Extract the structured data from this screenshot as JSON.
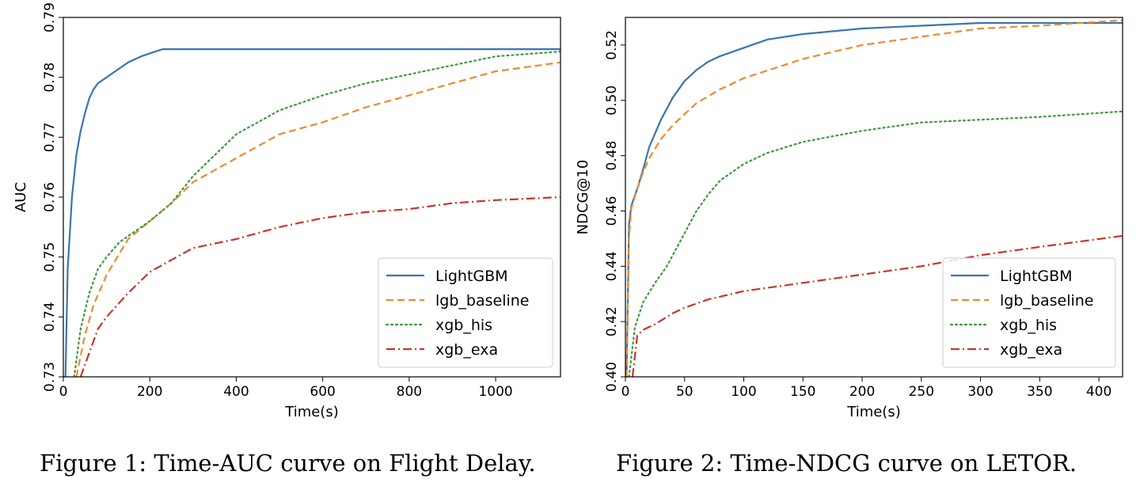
{
  "colors": {
    "LightGBM": "#3a75b0",
    "lgb_baseline": "#f08a2e",
    "xgb_his": "#3e9a3e",
    "xgb_exa": "#c8342f"
  },
  "captions": [
    "Figure 1: Time-AUC curve on Flight Delay.",
    "Figure 2: Time-NDCG curve on LETOR."
  ],
  "chart_data": [
    {
      "type": "line",
      "title": "",
      "xlabel": "Time(s)",
      "ylabel": "AUC",
      "xlim": [
        0,
        1150
      ],
      "ylim": [
        0.73,
        0.79
      ],
      "xticks": [
        0,
        200,
        400,
        600,
        800,
        1000
      ],
      "yticks": [
        0.73,
        0.74,
        0.75,
        0.76,
        0.77,
        0.78,
        0.79
      ],
      "ytick_labels": [
        "0.73",
        "0.74",
        "0.75",
        "0.76",
        "0.77",
        "0.78",
        "0.79"
      ],
      "legend": "lower-right",
      "series": [
        {
          "name": "LightGBM",
          "style": "solid",
          "x": [
            5,
            10,
            20,
            30,
            40,
            50,
            60,
            70,
            80,
            100,
            120,
            150,
            180,
            200,
            230,
            1150
          ],
          "y": [
            0.73,
            0.748,
            0.76,
            0.767,
            0.771,
            0.774,
            0.7765,
            0.778,
            0.779,
            0.78,
            0.781,
            0.7825,
            0.7835,
            0.784,
            0.7847,
            0.7847
          ]
        },
        {
          "name": "lgb_baseline",
          "style": "dashed",
          "x": [
            30,
            50,
            70,
            100,
            150,
            200,
            250,
            300,
            400,
            500,
            600,
            700,
            800,
            900,
            1000,
            1150
          ],
          "y": [
            0.73,
            0.737,
            0.742,
            0.747,
            0.753,
            0.756,
            0.759,
            0.7625,
            0.7665,
            0.7705,
            0.7725,
            0.775,
            0.777,
            0.779,
            0.781,
            0.7825
          ]
        },
        {
          "name": "xgb_his",
          "style": "dotted",
          "x": [
            25,
            40,
            60,
            80,
            100,
            130,
            160,
            200,
            250,
            300,
            400,
            500,
            600,
            700,
            800,
            900,
            1000,
            1150
          ],
          "y": [
            0.73,
            0.738,
            0.744,
            0.748,
            0.75,
            0.7525,
            0.754,
            0.756,
            0.759,
            0.7635,
            0.7705,
            0.7745,
            0.777,
            0.779,
            0.7805,
            0.782,
            0.7835,
            0.7843
          ]
        },
        {
          "name": "xgb_exa",
          "style": "dashdot",
          "x": [
            40,
            60,
            80,
            100,
            150,
            200,
            250,
            300,
            400,
            500,
            600,
            700,
            800,
            900,
            1000,
            1150
          ],
          "y": [
            0.73,
            0.734,
            0.738,
            0.74,
            0.744,
            0.7475,
            0.7495,
            0.7515,
            0.753,
            0.755,
            0.7565,
            0.7575,
            0.758,
            0.759,
            0.7595,
            0.76
          ]
        }
      ]
    },
    {
      "type": "line",
      "title": "",
      "xlabel": "Time(s)",
      "ylabel": "NDCG@10",
      "xlim": [
        0,
        420
      ],
      "ylim": [
        0.4,
        0.53
      ],
      "xticks": [
        0,
        50,
        100,
        150,
        200,
        250,
        300,
        350,
        400
      ],
      "yticks": [
        0.4,
        0.42,
        0.44,
        0.46,
        0.48,
        0.5,
        0.52
      ],
      "ytick_labels": [
        "0.40",
        "0.42",
        "0.44",
        "0.46",
        "0.48",
        "0.50",
        "0.52"
      ],
      "legend": "lower-right",
      "series": [
        {
          "name": "LightGBM",
          "style": "solid",
          "x": [
            1,
            3,
            5,
            10,
            15,
            20,
            30,
            40,
            50,
            60,
            70,
            80,
            100,
            120,
            150,
            200,
            250,
            300,
            420
          ],
          "y": [
            0.4,
            0.455,
            0.462,
            0.468,
            0.475,
            0.483,
            0.493,
            0.501,
            0.507,
            0.511,
            0.514,
            0.516,
            0.519,
            0.522,
            0.524,
            0.526,
            0.527,
            0.528,
            0.528
          ]
        },
        {
          "name": "lgb_baseline",
          "style": "dashed",
          "x": [
            1,
            3,
            5,
            10,
            15,
            20,
            30,
            40,
            50,
            60,
            80,
            100,
            150,
            200,
            250,
            300,
            350,
            420
          ],
          "y": [
            0.4,
            0.45,
            0.461,
            0.468,
            0.474,
            0.479,
            0.486,
            0.491,
            0.495,
            0.499,
            0.504,
            0.508,
            0.515,
            0.52,
            0.523,
            0.526,
            0.527,
            0.529
          ]
        },
        {
          "name": "xgb_his",
          "style": "dotted",
          "x": [
            3,
            8,
            15,
            25,
            35,
            50,
            60,
            70,
            80,
            100,
            120,
            150,
            200,
            250,
            300,
            350,
            420
          ],
          "y": [
            0.4,
            0.418,
            0.427,
            0.434,
            0.44,
            0.452,
            0.46,
            0.466,
            0.471,
            0.477,
            0.481,
            0.485,
            0.489,
            0.492,
            0.493,
            0.494,
            0.496
          ]
        },
        {
          "name": "xgb_exa",
          "style": "dashdot",
          "x": [
            6,
            10,
            15,
            25,
            40,
            50,
            70,
            100,
            150,
            200,
            250,
            300,
            350,
            420
          ],
          "y": [
            0.4,
            0.415,
            0.417,
            0.419,
            0.423,
            0.425,
            0.428,
            0.431,
            0.434,
            0.437,
            0.44,
            0.444,
            0.447,
            0.451
          ]
        }
      ]
    }
  ]
}
